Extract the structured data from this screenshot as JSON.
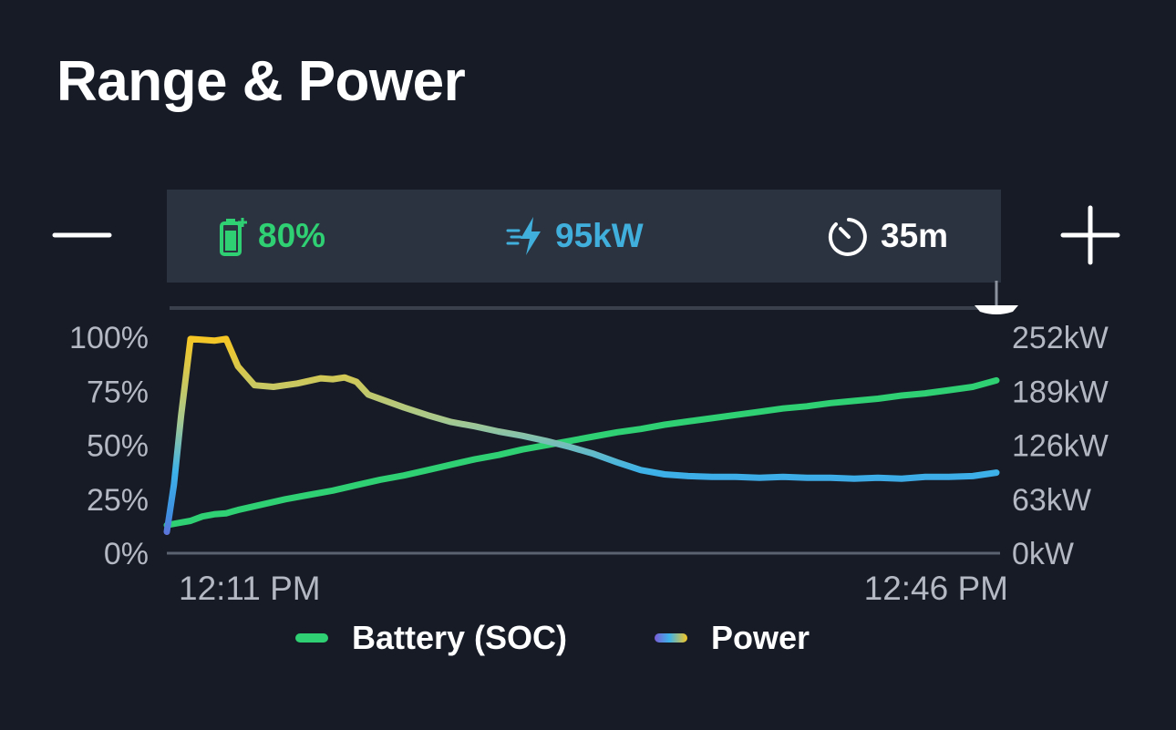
{
  "title": "Range & Power",
  "controls": {
    "zoom_out": "zoom-out",
    "zoom_in": "zoom-in"
  },
  "summary": {
    "battery": {
      "icon": "battery-charging-icon",
      "value": "80%"
    },
    "power": {
      "icon": "fast-charge-bolt-icon",
      "value": "95kW"
    },
    "duration": {
      "icon": "timer-icon",
      "value": "35m"
    }
  },
  "colors": {
    "background": "#161b26",
    "panel": "#2c3340",
    "soc": "#2fcf73",
    "power_start": "#7a5bd6",
    "power_mid": "#3db2e8",
    "power_end": "#f6c623",
    "axis_text": "#b3b8c2"
  },
  "chart_data": {
    "type": "line",
    "x_label_start": "12:11 PM",
    "x_label_end": "12:46 PM",
    "x_range_minutes": [
      0,
      35
    ],
    "left_axis": {
      "ticks": [
        "0%",
        "25%",
        "50%",
        "75%",
        "100%"
      ],
      "range": [
        0,
        100
      ]
    },
    "right_axis": {
      "ticks": [
        "0kW",
        "63kW",
        "126kW",
        "189kW",
        "252kW"
      ],
      "range": [
        0,
        252
      ]
    },
    "legend": [
      "Battery (SOC)",
      "Power"
    ],
    "series": [
      {
        "name": "Battery (SOC)",
        "axis": "left",
        "x": [
          0,
          0.5,
          1,
          1.5,
          2,
          2.5,
          3,
          4,
          5,
          6,
          7,
          8,
          9,
          10,
          11,
          12,
          13,
          14,
          15,
          16,
          17,
          18,
          19,
          20,
          21,
          22,
          23,
          24,
          25,
          26,
          27,
          28,
          29,
          30,
          31,
          32,
          33,
          34,
          35
        ],
        "values": [
          13,
          14,
          15,
          17,
          18,
          18.5,
          20,
          22.5,
          25,
          27,
          29,
          31.5,
          34,
          36,
          38.5,
          41,
          43.5,
          45.5,
          48,
          50,
          52,
          54,
          56,
          57.5,
          59.5,
          61,
          62.5,
          64,
          65.5,
          67,
          68,
          69.5,
          70.5,
          71.5,
          73,
          74,
          75.5,
          77,
          80
        ]
      },
      {
        "name": "Power",
        "axis": "right",
        "x": [
          0,
          0.3,
          0.6,
          1,
          2,
          2.5,
          3,
          3.7,
          4.5,
          5.5,
          6.5,
          7,
          7.5,
          8,
          8.5,
          9,
          10,
          11,
          12,
          13,
          14,
          15,
          16,
          17,
          18,
          19,
          20,
          21,
          22,
          23,
          24,
          25,
          26,
          27,
          28,
          29,
          30,
          31,
          32,
          33,
          34,
          35
        ],
        "values": [
          25,
          80,
          160,
          250,
          248,
          250,
          218,
          196,
          194,
          198,
          204,
          203,
          205,
          200,
          185,
          180,
          170,
          161,
          153,
          148,
          142,
          137,
          131,
          124,
          116,
          106,
          97,
          92,
          90,
          89,
          89,
          88,
          89,
          88,
          88,
          87,
          88,
          87,
          89,
          89,
          90,
          94
        ]
      }
    ],
    "grid": false
  }
}
